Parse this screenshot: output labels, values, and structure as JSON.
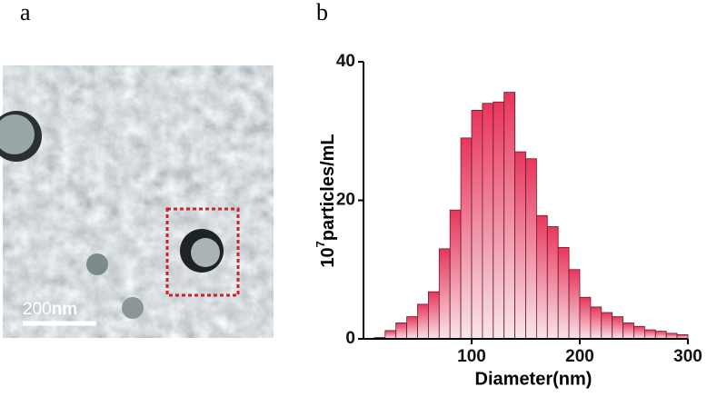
{
  "panel_labels": [
    "a",
    "b"
  ],
  "image": {
    "scale_bar_value": "200",
    "scale_bar_unit": "nm"
  },
  "chart_data": {
    "type": "histogram",
    "x_label": "Diameter(nm)",
    "y_label": {
      "base": "10",
      "exponent": "7",
      "text": "particles/mL"
    },
    "bins": [
      10,
      20,
      30,
      40,
      50,
      60,
      70,
      80,
      90,
      100,
      110,
      120,
      130,
      140,
      150,
      160,
      170,
      180,
      190,
      200,
      210,
      220,
      230,
      240,
      250,
      260,
      270,
      280,
      290,
      300
    ],
    "values": [
      0.2,
      1.2,
      2.3,
      3.2,
      5,
      6.8,
      13,
      18.6,
      29,
      33,
      34,
      34.2,
      35.6,
      27,
      26,
      17.8,
      16.2,
      13.2,
      10,
      6,
      4.6,
      3.8,
      3.2,
      2.3,
      1.8,
      1.3,
      1.1,
      0.8,
      0.6
    ],
    "color": "#e8365c",
    "xlim": [
      0,
      300
    ],
    "xticks": [
      100,
      200,
      300
    ],
    "ylim": [
      0,
      40
    ],
    "yticks": [
      0,
      20,
      40
    ]
  }
}
